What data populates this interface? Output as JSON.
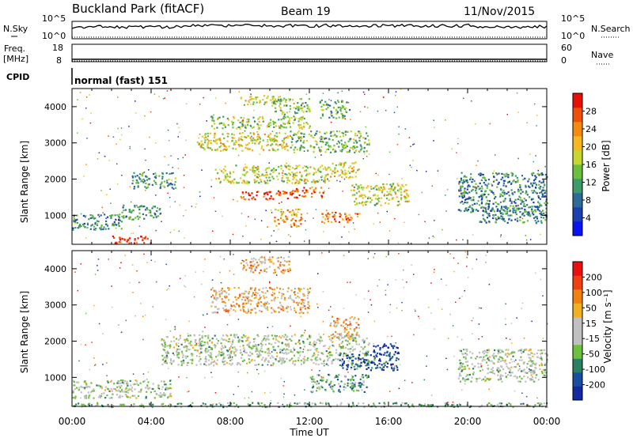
{
  "header": {
    "site": "Buckland Park (fitACF)",
    "beam": "Beam 19",
    "date": "11/Nov/2015"
  },
  "status_panels": {
    "nsky_label": "N.Sky",
    "nsky_ticks": [
      "10^5",
      "10^0"
    ],
    "nsearch_label": "N.Search",
    "nsearch_ticks": [
      "10^5",
      "10^0"
    ],
    "freq_label_line1": "Freq.",
    "freq_label_line2": "[MHz]",
    "freq_ticks": [
      "18",
      "8"
    ],
    "nave_label": "Nave",
    "nave_ticks": [
      "60",
      "0"
    ],
    "cpid_label": "CPID",
    "cpid_value": "normal (fast) 151"
  },
  "colors": {
    "power_scale": [
      "#0a14f0",
      "#1a3fb0",
      "#2e6a96",
      "#3f9a6a",
      "#6cbf3a",
      "#c8d630",
      "#f5b820",
      "#f58a10",
      "#ee5008",
      "#e81005"
    ],
    "velocity_scale": [
      "#1428a0",
      "#1a4ea0",
      "#2a8060",
      "#6cc040",
      "#c0c0c0",
      "#c0c0c0",
      "#f0b020",
      "#f08010",
      "#f04010",
      "#e81010"
    ],
    "ground_scatter": "#b4b4b4"
  },
  "chart_data": [
    {
      "type": "heatmap",
      "name": "power",
      "ylabel": "Slant Range [km]",
      "xlabel": "",
      "x_ticks": [
        "00:00",
        "04:00",
        "08:00",
        "12:00",
        "16:00",
        "20:00",
        "00:00"
      ],
      "y_ticks": [
        "1000",
        "2000",
        "3000",
        "4000"
      ],
      "ylim": [
        200,
        4500
      ],
      "xlim_hours": [
        0,
        24
      ],
      "colorbar_label": "Power [dB]",
      "colorbar_ticks": [
        "28",
        "24",
        "20",
        "16",
        "12",
        "8",
        "4"
      ],
      "features": [
        {
          "t0": 8.5,
          "t1": 10.5,
          "r0": 4050,
          "r1": 4350,
          "level": 0.55
        },
        {
          "t0": 10.0,
          "t1": 12.0,
          "r0": 3800,
          "r1": 4250,
          "level": 0.45
        },
        {
          "t0": 7.0,
          "t1": 12.0,
          "r0": 3400,
          "r1": 3750,
          "level": 0.5
        },
        {
          "t0": 6.3,
          "t1": 11.0,
          "r0": 2800,
          "r1": 3300,
          "level": 0.6
        },
        {
          "t0": 11.0,
          "t1": 15.0,
          "r0": 2750,
          "r1": 3350,
          "level": 0.45
        },
        {
          "t0": 12.5,
          "t1": 14.0,
          "r0": 3700,
          "r1": 4200,
          "level": 0.4
        },
        {
          "t0": 7.2,
          "t1": 13.0,
          "r0": 1900,
          "r1": 2400,
          "level": 0.55
        },
        {
          "t0": 13.0,
          "t1": 14.5,
          "r0": 2050,
          "r1": 2500,
          "level": 0.6
        },
        {
          "t0": 8.5,
          "t1": 11.0,
          "r0": 1450,
          "r1": 1700,
          "level": 0.9
        },
        {
          "t0": 11.0,
          "t1": 12.8,
          "r0": 1500,
          "r1": 1800,
          "level": 0.8
        },
        {
          "t0": 14.0,
          "t1": 17.0,
          "r0": 1300,
          "r1": 1900,
          "level": 0.55
        },
        {
          "t0": 12.5,
          "t1": 14.5,
          "r0": 800,
          "r1": 1100,
          "level": 0.8
        },
        {
          "t0": 10.2,
          "t1": 11.6,
          "r0": 700,
          "r1": 1200,
          "level": 0.7
        },
        {
          "t0": 3.0,
          "t1": 5.2,
          "r0": 1750,
          "r1": 2200,
          "level": 0.35
        },
        {
          "t0": 2.5,
          "t1": 4.5,
          "r0": 900,
          "r1": 1300,
          "level": 0.35
        },
        {
          "t0": 0.0,
          "t1": 2.5,
          "r0": 600,
          "r1": 1050,
          "level": 0.3
        },
        {
          "t0": 2.0,
          "t1": 4.0,
          "r0": 250,
          "r1": 450,
          "level": 0.9
        },
        {
          "t0": 19.5,
          "t1": 24.0,
          "r0": 1100,
          "r1": 2200,
          "level": 0.3
        },
        {
          "t0": 20.5,
          "t1": 24.0,
          "r0": 800,
          "r1": 1300,
          "level": 0.3
        }
      ]
    },
    {
      "type": "heatmap",
      "name": "velocity",
      "ylabel": "Slant Range [km]",
      "xlabel": "Time UT",
      "x_ticks": [
        "00:00",
        "04:00",
        "08:00",
        "12:00",
        "16:00",
        "20:00",
        "00:00"
      ],
      "y_ticks": [
        "1000",
        "2000",
        "3000",
        "4000"
      ],
      "ylim": [
        200,
        4500
      ],
      "xlim_hours": [
        0,
        24
      ],
      "colorbar_label": "Velocity [m s⁻¹]",
      "colorbar_ticks": [
        "200",
        "100",
        "50",
        "15",
        "-15",
        "-50",
        "-100",
        "-200"
      ],
      "features": [
        {
          "t0": 8.5,
          "t1": 11.0,
          "r0": 3900,
          "r1": 4350,
          "level": 0.65
        },
        {
          "t0": 7.0,
          "t1": 12.0,
          "r0": 2800,
          "r1": 3500,
          "level": 0.65
        },
        {
          "t0": 4.5,
          "t1": 15.0,
          "r0": 1350,
          "r1": 2200,
          "level": 0.45
        },
        {
          "t0": 13.5,
          "t1": 16.5,
          "r0": 1200,
          "r1": 1700,
          "level": 0.15
        },
        {
          "t0": 15.2,
          "t1": 16.5,
          "r0": 1650,
          "r1": 1950,
          "level": 0.05
        },
        {
          "t0": 12.0,
          "t1": 15.0,
          "r0": 600,
          "r1": 1100,
          "level": 0.32
        },
        {
          "t0": 0.0,
          "t1": 5.0,
          "r0": 450,
          "r1": 950,
          "level": 0.45
        },
        {
          "t0": 13.0,
          "t1": 14.5,
          "r0": 2100,
          "r1": 2700,
          "level": 0.65
        },
        {
          "t0": 19.5,
          "t1": 24.0,
          "r0": 900,
          "r1": 1800,
          "level": 0.45
        },
        {
          "t0": 0.0,
          "t1": 24.0,
          "r0": 200,
          "r1": 320,
          "level": 0.35
        }
      ]
    }
  ]
}
